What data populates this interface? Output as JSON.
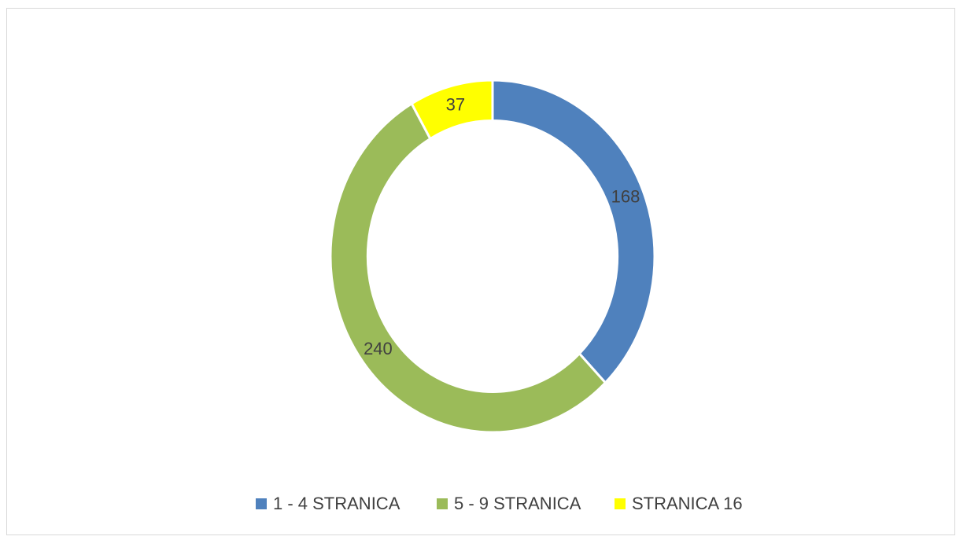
{
  "chart_data": {
    "type": "donut",
    "categories": [
      "1 - 4 STRANICA",
      "5 - 9 STRANICA",
      "STRANICA 16"
    ],
    "values": [
      168,
      240,
      37
    ],
    "colors": [
      "#4f81bd",
      "#9bbb59",
      "#ffff00"
    ],
    "legend": "bottom"
  }
}
